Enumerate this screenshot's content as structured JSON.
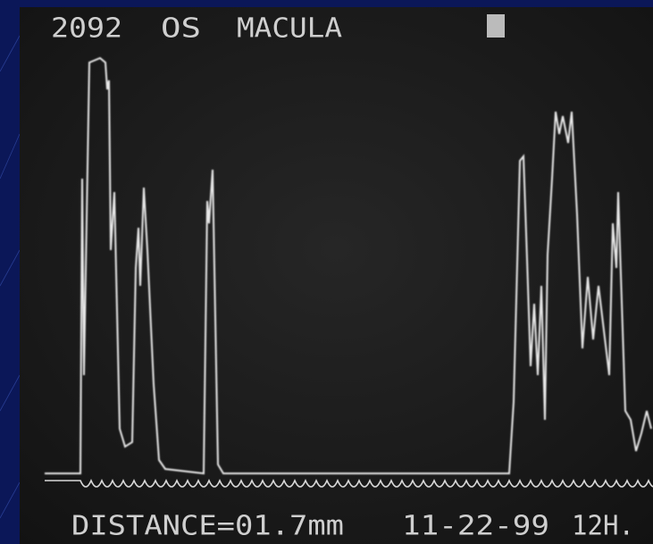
{
  "screen": {
    "header": {
      "id": "2092",
      "eye": "OS",
      "region": "MACULA"
    },
    "footer": {
      "distance": "DISTANCE=01.7mm",
      "date": "11-22-99",
      "time": "12H."
    }
  }
}
